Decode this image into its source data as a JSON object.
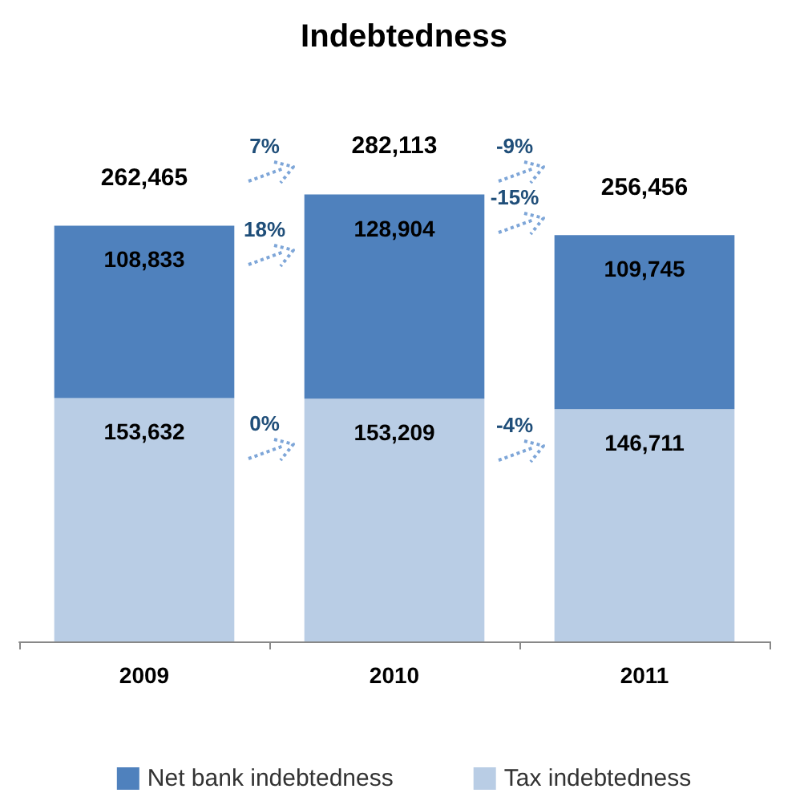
{
  "chart_data": {
    "type": "bar",
    "title": "Indebtedness",
    "categories": [
      "2009",
      "2010",
      "2011"
    ],
    "stacked": true,
    "series": [
      {
        "name": "Tax indebtedness",
        "color": "#b9cde5",
        "values": [
          153632,
          153209,
          146711
        ],
        "value_labels": [
          "153,632",
          "153,209",
          "146,711"
        ]
      },
      {
        "name": "Net bank indebtedness",
        "color": "#4f81bd",
        "values": [
          108833,
          128904,
          109745
        ],
        "value_labels": [
          "108,833",
          "128,904",
          "109,745"
        ]
      }
    ],
    "totals": [
      "262,465",
      "282,113",
      "256,456"
    ],
    "annotations": [
      "7%",
      "18%",
      "0%",
      "-9%",
      "-15%",
      "-4%"
    ],
    "legend": "bottom"
  }
}
